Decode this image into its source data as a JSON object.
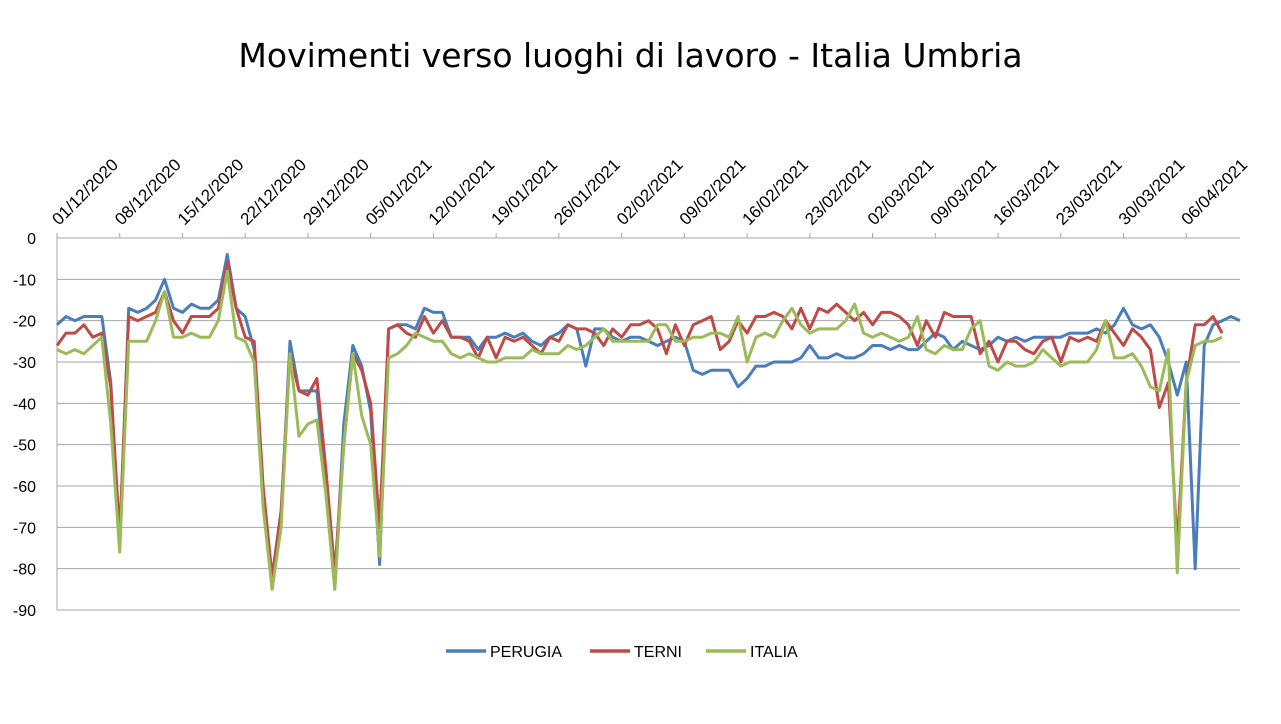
{
  "chart_data": {
    "type": "line",
    "title": "Movimenti verso luoghi di lavoro - Italia Umbria",
    "xlabel": "",
    "ylabel": "",
    "ylim": [
      -90,
      0
    ],
    "yticks": [
      0,
      -10,
      -20,
      -30,
      -40,
      -50,
      -60,
      -70,
      -80,
      -90
    ],
    "x_start": "01/12/2020",
    "x_end": "06/04/2021",
    "x_tick_labels": [
      "01/12/2020",
      "08/12/2020",
      "15/12/2020",
      "22/12/2020",
      "29/12/2020",
      "05/01/2021",
      "12/01/2021",
      "19/01/2021",
      "26/01/2021",
      "02/02/2021",
      "09/02/2021",
      "16/02/2021",
      "23/02/2021",
      "02/03/2021",
      "09/03/2021",
      "16/03/2021",
      "23/03/2021",
      "30/03/2021",
      "06/04/2021"
    ],
    "grid": "horizontal",
    "legend_position": "bottom",
    "series": [
      {
        "name": "PERUGIA",
        "color": "#4a7ebb",
        "values": [
          -21,
          -19,
          -20,
          -19,
          -19,
          -19,
          -35,
          -75,
          -17,
          -18,
          -17,
          -15,
          -10,
          -17,
          -18,
          -16,
          -17,
          -17,
          -15,
          -4,
          -17,
          -19,
          -27,
          -63,
          -85,
          -68,
          -25,
          -37,
          -37,
          -37,
          -60,
          -85,
          -45,
          -26,
          -31,
          -42,
          -79,
          -22,
          -21,
          -21,
          -22,
          -17,
          -18,
          -18,
          -24,
          -24,
          -24,
          -27,
          -24,
          -24,
          -23,
          -24,
          -23,
          -25,
          -26,
          -24,
          -23,
          -21,
          -22,
          -31,
          -22,
          -22,
          -24,
          -25,
          -24,
          -24,
          -25,
          -26,
          -25,
          -24,
          -25,
          -32,
          -33,
          -32,
          -32,
          -32,
          -36,
          -34,
          -31,
          -31,
          -30,
          -30,
          -30,
          -29,
          -26,
          -29,
          -29,
          -28,
          -29,
          -29,
          -28,
          -26,
          -26,
          -27,
          -26,
          -27,
          -27,
          -25,
          -23,
          -24,
          -27,
          -25,
          -26,
          -27,
          -26,
          -24,
          -25,
          -24,
          -25,
          -24,
          -24,
          -24,
          -24,
          -23,
          -23,
          -23,
          -22,
          -23,
          -21,
          -17,
          -21,
          -22,
          -21,
          -24,
          -30,
          -38,
          -30,
          -80,
          -26,
          -21,
          -20,
          -19,
          -20
        ]
      },
      {
        "name": "TERNI",
        "color": "#be4b48",
        "values": [
          -26,
          -23,
          -23,
          -21,
          -24,
          -23,
          -36,
          -72,
          -19,
          -20,
          -19,
          -18,
          -13,
          -20,
          -23,
          -19,
          -19,
          -19,
          -17,
          -6,
          -17,
          -24,
          -25,
          -60,
          -82,
          -66,
          -28,
          -37,
          -38,
          -34,
          -56,
          -81,
          -50,
          -28,
          -32,
          -40,
          -70,
          -22,
          -21,
          -23,
          -24,
          -19,
          -23,
          -20,
          -24,
          -24,
          -25,
          -29,
          -24,
          -29,
          -24,
          -25,
          -24,
          -26,
          -28,
          -24,
          -25,
          -21,
          -22,
          -22,
          -23,
          -26,
          -22,
          -24,
          -21,
          -21,
          -20,
          -22,
          -28,
          -21,
          -26,
          -21,
          -20,
          -19,
          -27,
          -25,
          -20,
          -23,
          -19,
          -19,
          -18,
          -19,
          -22,
          -17,
          -22,
          -17,
          -18,
          -16,
          -18,
          -20,
          -18,
          -21,
          -18,
          -18,
          -19,
          -21,
          -26,
          -20,
          -24,
          -18,
          -19,
          -19,
          -19,
          -28,
          -25,
          -30,
          -25,
          -25,
          -27,
          -28,
          -25,
          -24,
          -30,
          -24,
          -25,
          -24,
          -25,
          -20,
          -23,
          -26,
          -22,
          -24,
          -27,
          -41,
          -35,
          -75,
          -35,
          -21,
          -21,
          -19,
          -23
        ]
      },
      {
        "name": "ITALIA",
        "color": "#9bbb59",
        "values": [
          -27,
          -28,
          -27,
          -28,
          -26,
          -24,
          -45,
          -76,
          -25,
          -25,
          -25,
          -20,
          -13,
          -24,
          -24,
          -23,
          -24,
          -24,
          -20,
          -8,
          -24,
          -25,
          -30,
          -65,
          -85,
          -70,
          -28,
          -48,
          -45,
          -44,
          -62,
          -85,
          -50,
          -28,
          -43,
          -50,
          -77,
          -29,
          -28,
          -26,
          -23,
          -24,
          -25,
          -25,
          -28,
          -29,
          -28,
          -29,
          -30,
          -30,
          -29,
          -29,
          -29,
          -27,
          -28,
          -28,
          -28,
          -26,
          -27,
          -26,
          -24,
          -22,
          -25,
          -25,
          -25,
          -25,
          -25,
          -21,
          -21,
          -25,
          -25,
          -24,
          -24,
          -23,
          -23,
          -24,
          -19,
          -30,
          -24,
          -23,
          -24,
          -20,
          -17,
          -21,
          -23,
          -22,
          -22,
          -22,
          -20,
          -16,
          -23,
          -24,
          -23,
          -24,
          -25,
          -24,
          -19,
          -27,
          -28,
          -26,
          -27,
          -27,
          -22,
          -20,
          -31,
          -32,
          -30,
          -31,
          -31,
          -30,
          -27,
          -29,
          -31,
          -30,
          -30,
          -30,
          -27,
          -20,
          -29,
          -29,
          -28,
          -31,
          -36,
          -37,
          -27,
          -81,
          -35,
          -26,
          -25,
          -25,
          -24
        ]
      }
    ]
  }
}
